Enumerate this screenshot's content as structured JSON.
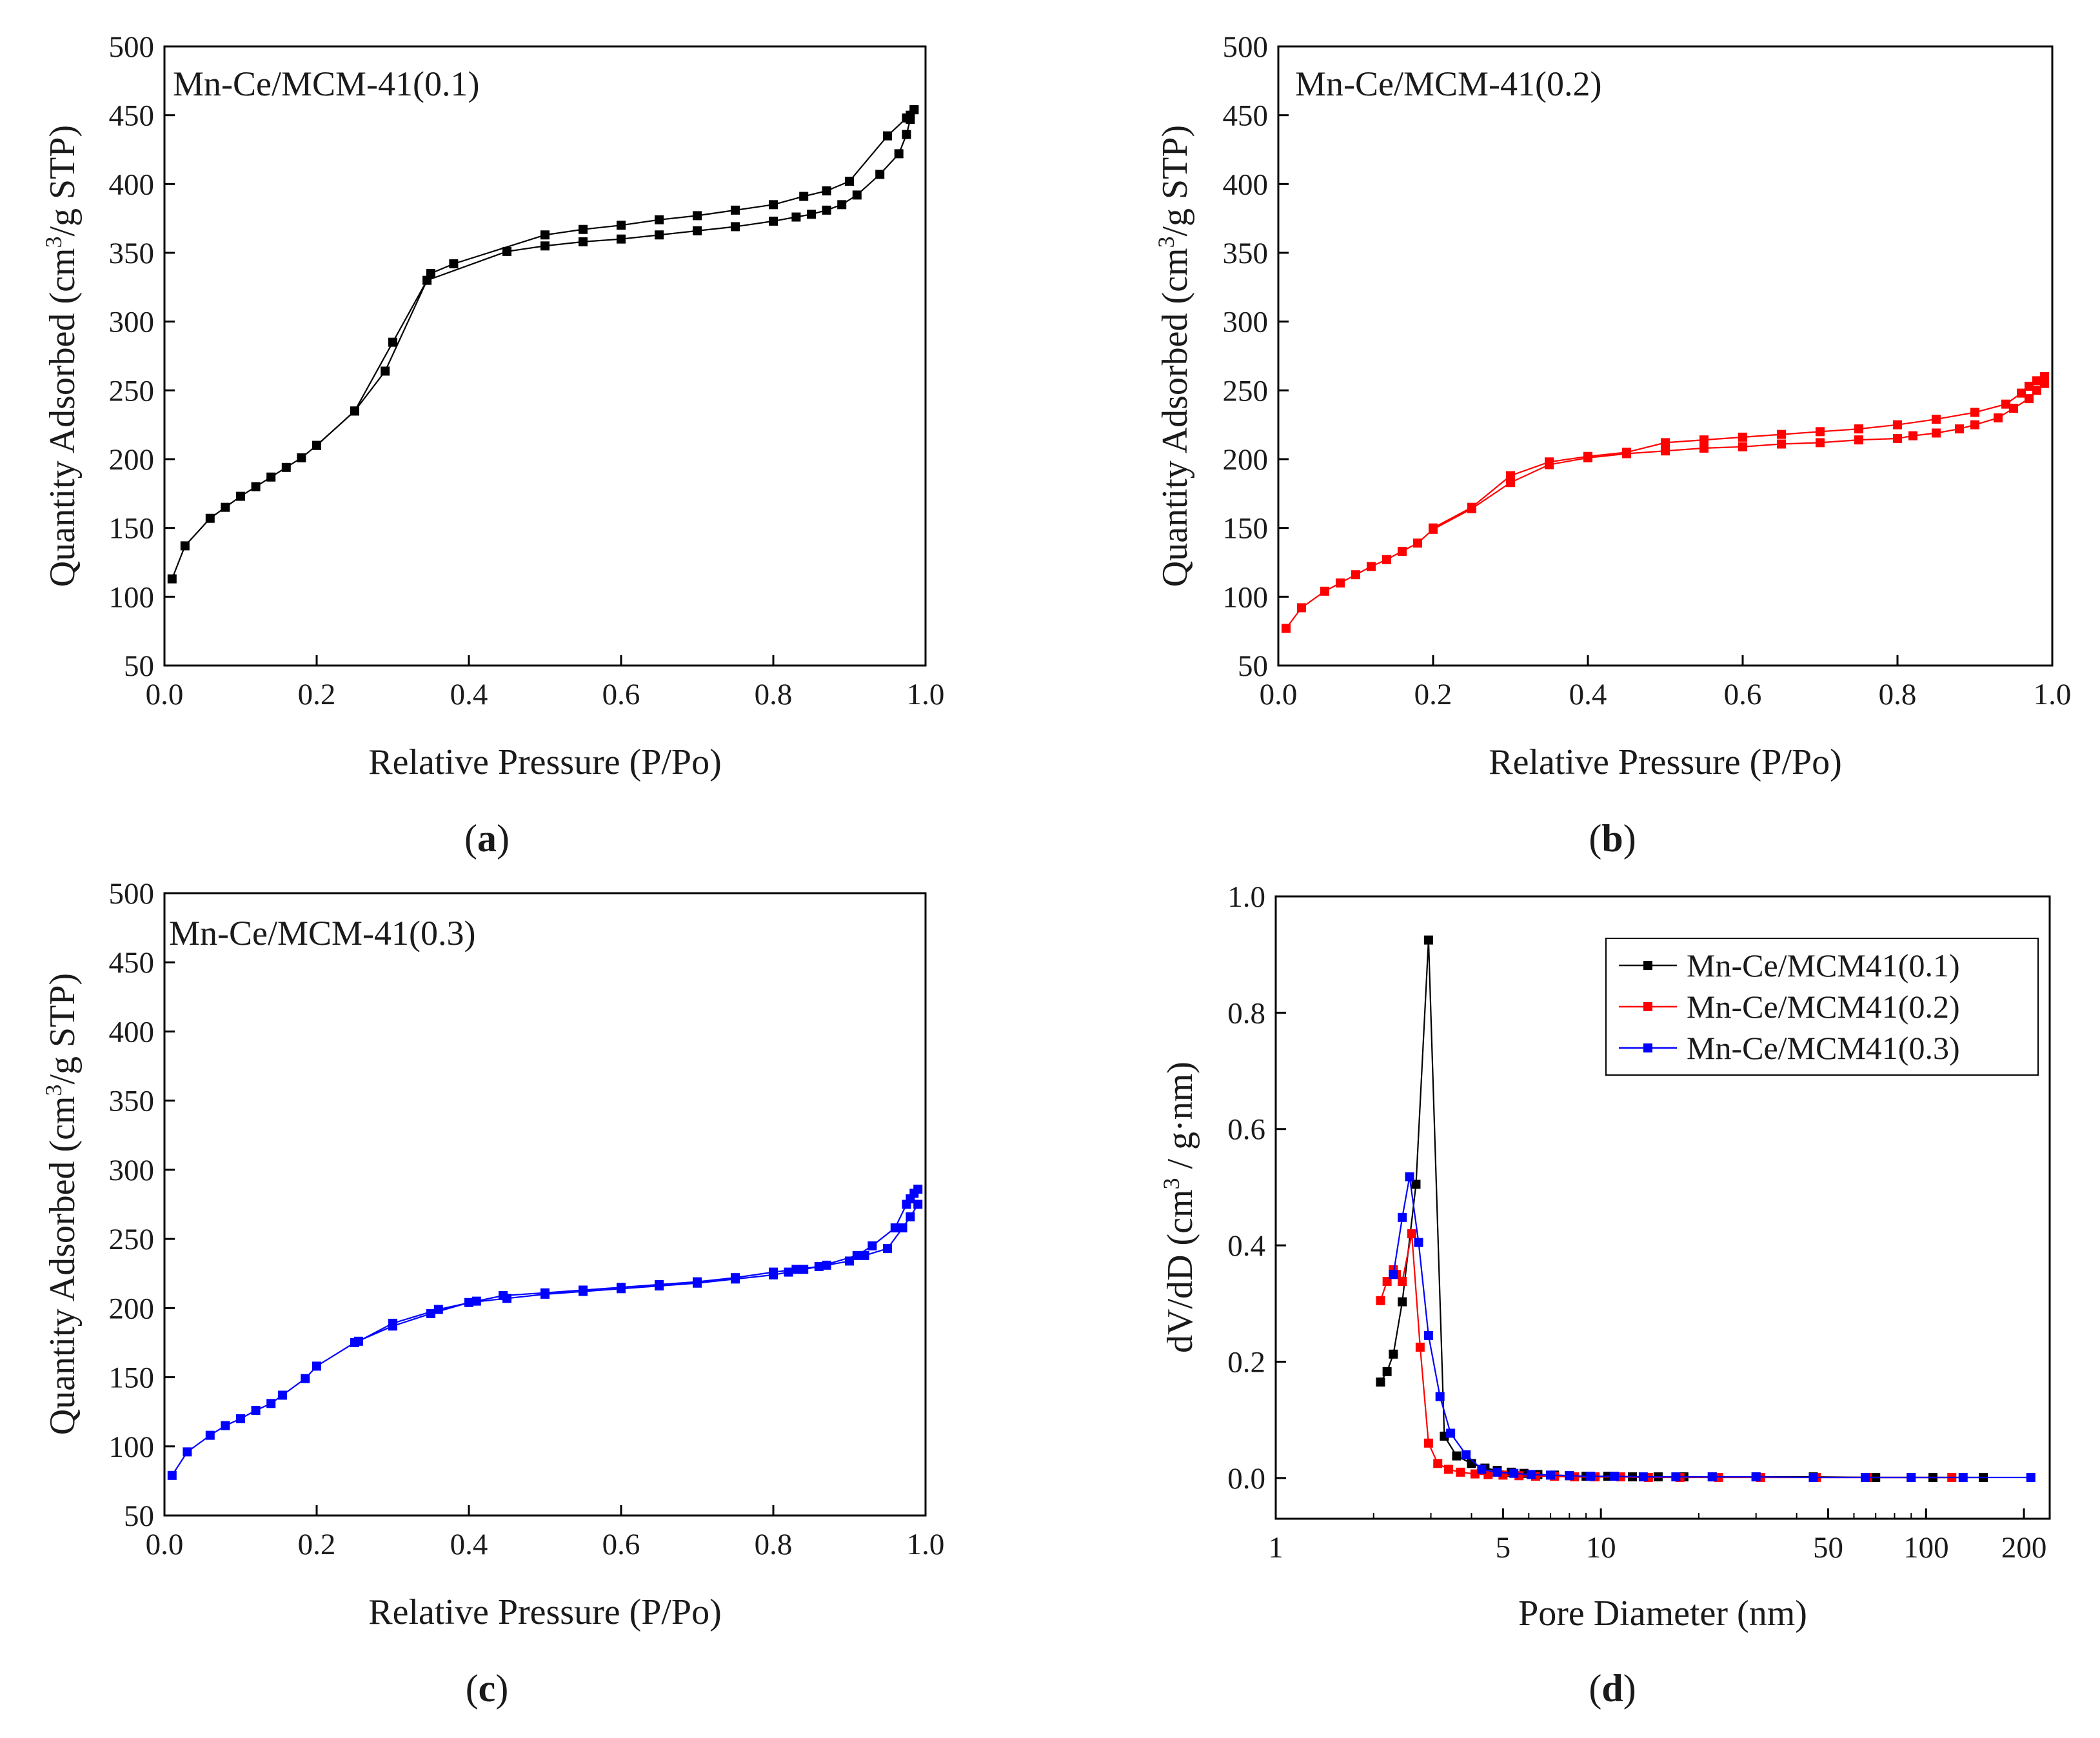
{
  "panels": [
    {
      "caption": "a",
      "open": "(",
      "close": ")"
    },
    {
      "caption": "b",
      "open": "(",
      "close": ")"
    },
    {
      "caption": "c",
      "open": "(",
      "close": ")"
    },
    {
      "caption": "d",
      "open": "(",
      "close": ")"
    }
  ],
  "chart_data": [
    {
      "id": "a",
      "type": "line",
      "title": "Mn-Ce/MCM-41(0.1)",
      "xlabel": "Relative Pressure (P/Po)",
      "ylabel": "Quantity Adsorbed (cm3/g STP)",
      "xlim": [
        0,
        1.0
      ],
      "ylim": [
        50,
        500
      ],
      "xticks": [
        0.0,
        0.2,
        0.4,
        0.6,
        0.8,
        1.0
      ],
      "yticks": [
        50,
        100,
        150,
        200,
        250,
        300,
        350,
        400,
        450,
        500
      ],
      "color": "#000000",
      "series": [
        {
          "name": "adsorption",
          "x": [
            0.01,
            0.027,
            0.06,
            0.08,
            0.1,
            0.12,
            0.14,
            0.16,
            0.18,
            0.2,
            0.25,
            0.29,
            0.345,
            0.45,
            0.5,
            0.55,
            0.6,
            0.65,
            0.7,
            0.75,
            0.8,
            0.83,
            0.85,
            0.87,
            0.89,
            0.91,
            0.94,
            0.965,
            0.975,
            0.98,
            0.985
          ],
          "y": [
            113,
            137,
            157,
            165,
            173,
            180,
            187,
            194,
            201,
            210,
            235,
            264,
            330,
            351,
            355,
            358,
            360,
            363,
            366,
            369,
            373,
            376,
            378,
            381,
            385,
            392,
            407,
            422,
            436,
            447,
            454
          ]
        },
        {
          "name": "desorption",
          "x": [
            0.985,
            0.98,
            0.975,
            0.95,
            0.9,
            0.87,
            0.84,
            0.8,
            0.75,
            0.7,
            0.65,
            0.6,
            0.55,
            0.5,
            0.38,
            0.35,
            0.3,
            0.25,
            0.2
          ],
          "y": [
            454,
            450,
            448,
            435,
            402,
            395,
            391,
            385,
            381,
            377,
            374,
            370,
            367,
            363,
            342,
            335,
            285,
            235,
            210
          ]
        }
      ]
    },
    {
      "id": "b",
      "type": "line",
      "title": "Mn-Ce/MCM-41(0.2)",
      "xlabel": "Relative Pressure (P/Po)",
      "ylabel": "Quantity Adsorbed (cm3/g STP)",
      "xlim": [
        0,
        1.0
      ],
      "ylim": [
        50,
        500
      ],
      "xticks": [
        0.0,
        0.2,
        0.4,
        0.6,
        0.8,
        1.0
      ],
      "yticks": [
        50,
        100,
        150,
        200,
        250,
        300,
        350,
        400,
        450,
        500
      ],
      "color": "#ff0000",
      "series": [
        {
          "name": "adsorption",
          "x": [
            0.01,
            0.03,
            0.06,
            0.08,
            0.1,
            0.12,
            0.14,
            0.16,
            0.18,
            0.2,
            0.25,
            0.3,
            0.35,
            0.4,
            0.45,
            0.5,
            0.55,
            0.6,
            0.65,
            0.7,
            0.75,
            0.8,
            0.82,
            0.85,
            0.88,
            0.9,
            0.93,
            0.95,
            0.97,
            0.98,
            0.99
          ],
          "y": [
            77,
            92,
            104,
            110,
            116,
            122,
            127,
            133,
            139,
            149,
            164,
            183,
            196,
            201,
            204,
            206,
            208,
            209,
            211,
            212,
            214,
            215,
            217,
            219,
            222,
            225,
            230,
            237,
            244,
            250,
            255
          ]
        },
        {
          "name": "desorption",
          "x": [
            0.99,
            0.98,
            0.97,
            0.96,
            0.94,
            0.9,
            0.85,
            0.8,
            0.75,
            0.7,
            0.65,
            0.6,
            0.55,
            0.5,
            0.45,
            0.4,
            0.35,
            0.3,
            0.25,
            0.2
          ],
          "y": [
            260,
            257,
            253,
            248,
            240,
            234,
            229,
            225,
            222,
            220,
            218,
            216,
            214,
            212,
            205,
            202,
            198,
            188,
            165,
            150
          ]
        }
      ]
    },
    {
      "id": "c",
      "type": "line",
      "title": "Mn-Ce/MCM-41(0.3)",
      "xlabel": "Relative Pressure (P/Po)",
      "ylabel": "Quantity Adsorbed (cm3/g STP)",
      "xlim": [
        0,
        1.0
      ],
      "ylim": [
        50,
        500
      ],
      "xticks": [
        0.0,
        0.2,
        0.4,
        0.6,
        0.8,
        1.0
      ],
      "yticks": [
        50,
        100,
        150,
        200,
        250,
        300,
        350,
        400,
        450,
        500
      ],
      "color": "#0000ff",
      "series": [
        {
          "name": "adsorption",
          "x": [
            0.01,
            0.03,
            0.06,
            0.08,
            0.1,
            0.12,
            0.14,
            0.155,
            0.185,
            0.2,
            0.25,
            0.3,
            0.35,
            0.4,
            0.45,
            0.5,
            0.55,
            0.6,
            0.65,
            0.7,
            0.75,
            0.8,
            0.82,
            0.84,
            0.87,
            0.9,
            0.92,
            0.95,
            0.97,
            0.98,
            0.99
          ],
          "y": [
            79,
            96,
            108,
            115,
            120,
            126,
            131,
            137,
            149,
            158,
            175,
            187,
            196,
            204,
            207,
            210,
            212,
            214,
            216,
            218,
            221,
            224,
            226,
            228,
            231,
            234,
            238,
            243,
            258,
            266,
            275
          ]
        },
        {
          "name": "desorption",
          "x": [
            0.99,
            0.985,
            0.98,
            0.975,
            0.96,
            0.93,
            0.91,
            0.86,
            0.83,
            0.8,
            0.75,
            0.7,
            0.65,
            0.6,
            0.55,
            0.5,
            0.445,
            0.41,
            0.36,
            0.3,
            0.255
          ],
          "y": [
            286,
            283,
            279,
            275,
            258,
            245,
            238,
            230,
            228,
            226,
            222,
            219,
            217,
            215,
            213,
            211,
            209,
            205,
            199,
            189,
            176
          ]
        }
      ]
    },
    {
      "id": "d",
      "type": "line",
      "xscale": "log",
      "xlabel": "Pore Diameter (nm)",
      "ylabel": "dV/dD (cm3 / g·nm)",
      "xlim": [
        1,
        240
      ],
      "ylim": [
        -0.07,
        1.0
      ],
      "xticks": [
        1,
        5,
        10,
        50,
        100,
        200
      ],
      "yticks": [
        0.0,
        0.2,
        0.4,
        0.6,
        0.8,
        1.0
      ],
      "legend": "top-right",
      "series": [
        {
          "name": "Mn-Ce/MCM41(0.1)",
          "color": "#000000",
          "x": [
            2.1,
            2.2,
            2.3,
            2.45,
            2.7,
            2.95,
            3.3,
            3.6,
            4.0,
            4.4,
            4.8,
            5.3,
            5.8,
            6.4,
            7.2,
            8.0,
            9.0,
            10.5,
            12.5,
            15.0,
            18.0,
            22.0,
            30.0,
            45.0,
            70.0,
            105.0,
            150.0
          ],
          "y": [
            0.165,
            0.183,
            0.213,
            0.303,
            0.505,
            0.925,
            0.072,
            0.038,
            0.025,
            0.017,
            0.013,
            0.01,
            0.008,
            0.006,
            0.005,
            0.004,
            0.003,
            0.003,
            0.002,
            0.002,
            0.002,
            0.002,
            0.002,
            0.002,
            0.001,
            0.001,
            0.001
          ]
        },
        {
          "name": "Mn-Ce/MCM41(0.2)",
          "color": "#ff0000",
          "x": [
            2.1,
            2.2,
            2.3,
            2.35,
            2.45,
            2.62,
            2.78,
            2.95,
            3.15,
            3.4,
            3.7,
            4.1,
            4.5,
            5.0,
            5.6,
            6.3,
            7.2,
            8.3,
            9.6,
            11.5,
            14.0,
            17.5,
            23.0,
            31.0,
            46.0,
            66.0,
            90.0,
            120.0
          ],
          "y": [
            0.305,
            0.338,
            0.358,
            0.35,
            0.338,
            0.42,
            0.225,
            0.06,
            0.025,
            0.015,
            0.01,
            0.007,
            0.006,
            0.005,
            0.004,
            0.003,
            0.003,
            0.002,
            0.002,
            0.002,
            0.001,
            0.001,
            0.001,
            0.001,
            0.001,
            0.001,
            0.001,
            0.001
          ]
        },
        {
          "name": "Mn-Ce/MCM41(0.3)",
          "color": "#0000ff",
          "x": [
            2.3,
            2.45,
            2.58,
            2.75,
            2.95,
            3.2,
            3.45,
            3.85,
            4.3,
            4.8,
            5.4,
            6.1,
            7.0,
            8.0,
            9.3,
            11.0,
            13.5,
            17.0,
            22.0,
            30.0,
            45.0,
            65.0,
            90.0,
            130.0,
            210.0
          ],
          "y": [
            0.35,
            0.448,
            0.518,
            0.405,
            0.245,
            0.14,
            0.077,
            0.04,
            0.015,
            0.01,
            0.008,
            0.006,
            0.005,
            0.004,
            0.003,
            0.003,
            0.002,
            0.002,
            0.002,
            0.002,
            0.001,
            0.001,
            0.001,
            0.001,
            0.001
          ]
        }
      ]
    }
  ]
}
